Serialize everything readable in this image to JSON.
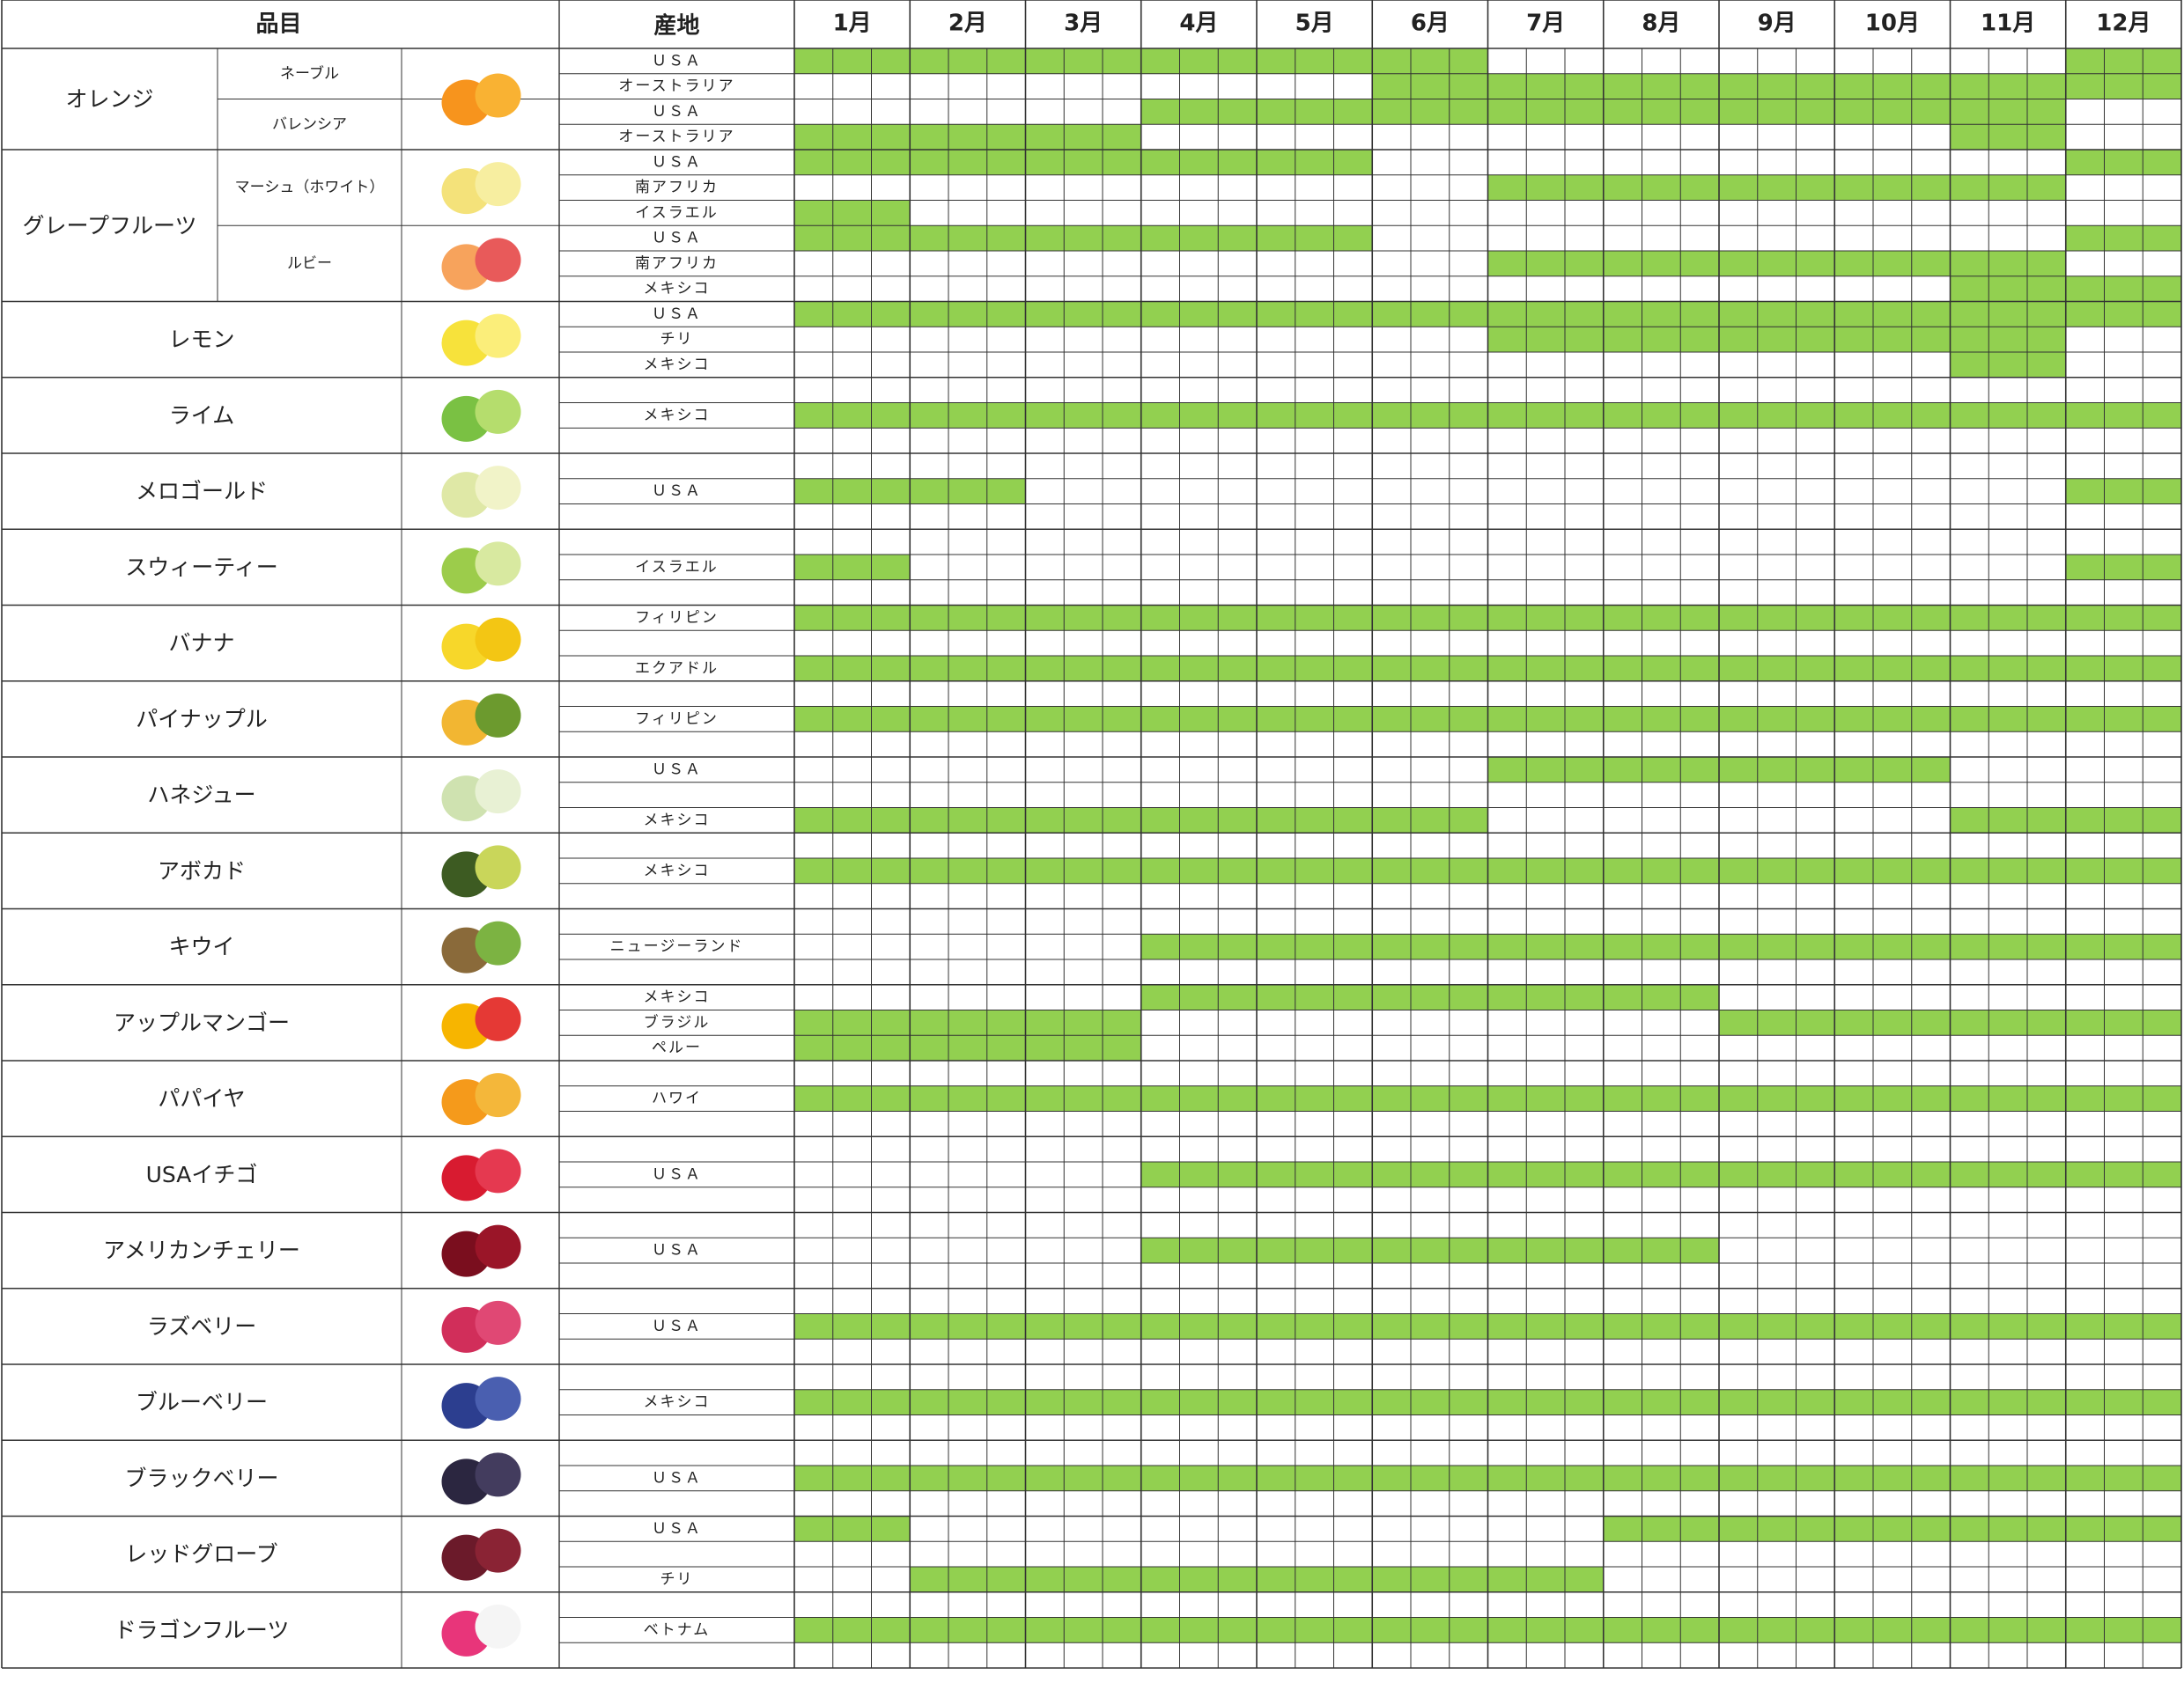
{
  "chart_data": {
    "type": "table",
    "title": "",
    "headers": {
      "item": "品目",
      "origin": "産地"
    },
    "months": [
      "1月",
      "2月",
      "3月",
      "4月",
      "5月",
      "6月",
      "7月",
      "8月",
      "9月",
      "10月",
      "11月",
      "12月"
    ],
    "green_color": "#92d050",
    "groups": [
      {
        "name": "オレンジ",
        "image": "orange-image",
        "rows": [
          {
            "sub": "ネーブル",
            "origin": "ＵＳＡ",
            "ranges": [
              [
                0,
                17
              ],
              [
                33,
                35
              ]
            ]
          },
          {
            "sub": "ネーブル",
            "origin": "オーストラリア",
            "ranges": [
              [
                15,
                35
              ]
            ]
          },
          {
            "sub": "バレンシア",
            "origin": "ＵＳＡ",
            "ranges": [
              [
                9,
                32
              ]
            ]
          },
          {
            "sub": "バレンシア",
            "origin": "オーストラリア",
            "ranges": [
              [
                0,
                8
              ],
              [
                30,
                32
              ]
            ]
          }
        ]
      },
      {
        "name": "グレープフルーツ",
        "rows": [
          {
            "sub": "マーシュ（ホワイト）",
            "origin": "ＵＳＡ",
            "image": "white-grapefruit-image",
            "ranges": [
              [
                0,
                14
              ],
              [
                33,
                35
              ]
            ]
          },
          {
            "sub": "マーシュ（ホワイト）",
            "origin": "南アフリカ",
            "image": "white-grapefruit-image",
            "ranges": [
              [
                18,
                32
              ]
            ]
          },
          {
            "sub": "マーシュ（ホワイト）",
            "origin": "イスラエル",
            "image": "white-grapefruit-image",
            "ranges": [
              [
                0,
                2
              ]
            ]
          },
          {
            "sub": "ルビー",
            "origin": "ＵＳＡ",
            "image": "ruby-grapefruit-image",
            "ranges": [
              [
                0,
                14
              ],
              [
                33,
                35
              ]
            ]
          },
          {
            "sub": "ルビー",
            "origin": "南アフリカ",
            "image": "ruby-grapefruit-image",
            "ranges": [
              [
                18,
                32
              ]
            ]
          },
          {
            "sub": "ルビー",
            "origin": "メキシコ",
            "image": "ruby-grapefruit-image",
            "ranges": [
              [
                30,
                35
              ]
            ]
          }
        ]
      },
      {
        "name": "レモン",
        "image": "lemon-image",
        "rows": [
          {
            "origin": "ＵＳＡ",
            "ranges": [
              [
                0,
                35
              ]
            ]
          },
          {
            "origin": "チリ",
            "ranges": [
              [
                18,
                32
              ]
            ]
          },
          {
            "origin": "メキシコ",
            "ranges": [
              [
                30,
                32
              ]
            ]
          }
        ]
      },
      {
        "name": "ライム",
        "image": "lime-image",
        "rows": [
          {
            "origin": "",
            "ranges": []
          },
          {
            "origin": "メキシコ",
            "ranges": [
              [
                0,
                35
              ]
            ]
          },
          {
            "origin": "",
            "ranges": []
          }
        ]
      },
      {
        "name": "メロゴールド",
        "image": "melogold-image",
        "rows": [
          {
            "origin": "",
            "ranges": []
          },
          {
            "origin": "ＵＳＡ",
            "ranges": [
              [
                0,
                5
              ],
              [
                33,
                35
              ]
            ]
          },
          {
            "origin": "",
            "ranges": []
          }
        ]
      },
      {
        "name": "スウィーティー",
        "image": "sweetie-image",
        "rows": [
          {
            "origin": "",
            "ranges": []
          },
          {
            "origin": "イスラエル",
            "ranges": [
              [
                0,
                2
              ],
              [
                33,
                35
              ]
            ]
          },
          {
            "origin": "",
            "ranges": []
          }
        ]
      },
      {
        "name": "バナナ",
        "image": "banana-image",
        "rows": [
          {
            "origin": "フィリピン",
            "ranges": [
              [
                0,
                35
              ]
            ]
          },
          {
            "origin": "",
            "ranges": []
          },
          {
            "origin": "エクアドル",
            "ranges": [
              [
                0,
                35
              ]
            ]
          }
        ]
      },
      {
        "name": "パイナップル",
        "image": "pineapple-image",
        "rows": [
          {
            "origin": "",
            "ranges": []
          },
          {
            "origin": "フィリピン",
            "ranges": [
              [
                0,
                35
              ]
            ]
          },
          {
            "origin": "",
            "ranges": []
          }
        ]
      },
      {
        "name": "ハネジュー",
        "image": "honeydew-image",
        "rows": [
          {
            "origin": "ＵＳＡ",
            "ranges": [
              [
                18,
                29
              ]
            ]
          },
          {
            "origin": "",
            "ranges": []
          },
          {
            "origin": "メキシコ",
            "ranges": [
              [
                0,
                17
              ],
              [
                30,
                35
              ]
            ]
          }
        ]
      },
      {
        "name": "アボカド",
        "image": "avocado-image",
        "rows": [
          {
            "origin": "",
            "ranges": []
          },
          {
            "origin": "メキシコ",
            "ranges": [
              [
                0,
                35
              ]
            ]
          },
          {
            "origin": "",
            "ranges": []
          }
        ]
      },
      {
        "name": "キウイ",
        "image": "kiwi-image",
        "rows": [
          {
            "origin": "",
            "ranges": []
          },
          {
            "origin": "ニュージーランド",
            "ranges": [
              [
                9,
                35
              ]
            ]
          },
          {
            "origin": "",
            "ranges": []
          }
        ]
      },
      {
        "name": "アップルマンゴー",
        "image": "mango-image",
        "rows": [
          {
            "origin": "メキシコ",
            "ranges": [
              [
                9,
                23
              ]
            ]
          },
          {
            "origin": "ブラジル",
            "ranges": [
              [
                0,
                8
              ],
              [
                24,
                35
              ]
            ]
          },
          {
            "origin": "ペルー",
            "ranges": [
              [
                0,
                8
              ]
            ]
          }
        ]
      },
      {
        "name": "パパイヤ",
        "image": "papaya-image",
        "rows": [
          {
            "origin": "",
            "ranges": []
          },
          {
            "origin": "ハワイ",
            "ranges": [
              [
                0,
                35
              ]
            ]
          },
          {
            "origin": "",
            "ranges": []
          }
        ]
      },
      {
        "name": "USAイチゴ",
        "image": "strawberry-image",
        "rows": [
          {
            "origin": "",
            "ranges": []
          },
          {
            "origin": "ＵＳＡ",
            "ranges": [
              [
                9,
                35
              ]
            ]
          },
          {
            "origin": "",
            "ranges": []
          }
        ]
      },
      {
        "name": "アメリカンチェリー",
        "image": "cherry-image",
        "rows": [
          {
            "origin": "",
            "ranges": []
          },
          {
            "origin": "ＵＳＡ",
            "ranges": [
              [
                9,
                23
              ]
            ]
          },
          {
            "origin": "",
            "ranges": []
          }
        ]
      },
      {
        "name": "ラズベリー",
        "image": "raspberry-image",
        "rows": [
          {
            "origin": "",
            "ranges": []
          },
          {
            "origin": "ＵＳＡ",
            "ranges": [
              [
                0,
                35
              ]
            ]
          },
          {
            "origin": "",
            "ranges": []
          }
        ]
      },
      {
        "name": "ブルーベリー",
        "image": "blueberry-image",
        "rows": [
          {
            "origin": "",
            "ranges": []
          },
          {
            "origin": "メキシコ",
            "ranges": [
              [
                0,
                35
              ]
            ]
          },
          {
            "origin": "",
            "ranges": []
          }
        ]
      },
      {
        "name": "ブラックベリー",
        "image": "blackberry-image",
        "rows": [
          {
            "origin": "",
            "ranges": []
          },
          {
            "origin": "ＵＳＡ",
            "ranges": [
              [
                0,
                35
              ]
            ]
          },
          {
            "origin": "",
            "ranges": []
          }
        ]
      },
      {
        "name": "レッドグローブ",
        "image": "red-globe-grape-image",
        "rows": [
          {
            "origin": "ＵＳＡ",
            "ranges": [
              [
                0,
                2
              ],
              [
                21,
                35
              ]
            ]
          },
          {
            "origin": "",
            "ranges": []
          },
          {
            "origin": "チリ",
            "ranges": [
              [
                3,
                20
              ]
            ]
          }
        ]
      },
      {
        "name": "ドラゴンフルーツ",
        "image": "dragonfruit-image",
        "rows": [
          {
            "origin": "",
            "ranges": []
          },
          {
            "origin": "ベトナム",
            "ranges": [
              [
                0,
                35
              ]
            ]
          },
          {
            "origin": "",
            "ranges": []
          }
        ]
      }
    ]
  }
}
